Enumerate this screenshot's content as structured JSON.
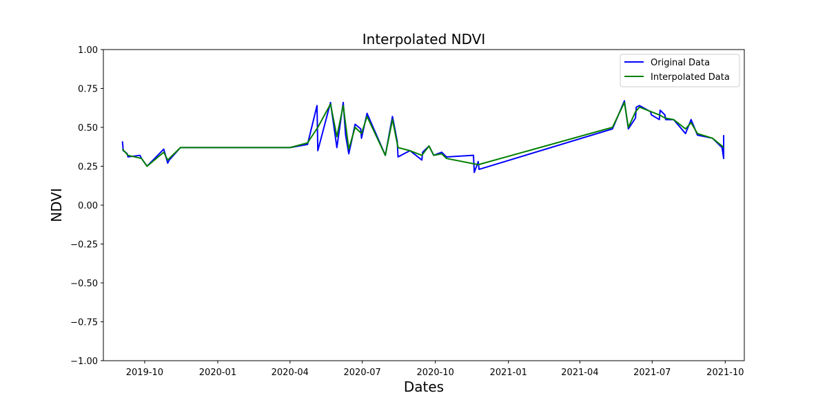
{
  "chart_data": {
    "type": "line",
    "title": "Interpolated NDVI",
    "xlabel": "Dates",
    "ylabel": "NDVI",
    "xlim": [
      "2019-08-10",
      "2021-10-25"
    ],
    "ylim": [
      -1.0,
      1.0
    ],
    "x_ticks": [
      "2019-10-01",
      "2020-01-01",
      "2020-04-01",
      "2020-07-01",
      "2020-10-01",
      "2021-01-01",
      "2021-04-01",
      "2021-07-01",
      "2021-10-01"
    ],
    "x_tick_labels": [
      "2019-10",
      "2020-01",
      "2020-04",
      "2020-07",
      "2020-10",
      "2021-01",
      "2021-04",
      "2021-07",
      "2021-10"
    ],
    "y_ticks": [
      1.0,
      0.75,
      0.5,
      0.25,
      0.0,
      -0.25,
      -0.5,
      -0.75,
      -1.0
    ],
    "y_tick_labels": [
      "1.00",
      "0.75",
      "0.50",
      "0.25",
      "0.00",
      "−0.25",
      "−0.50",
      "−0.75",
      "−1.00"
    ],
    "grid": false,
    "legend": {
      "position": "top-right",
      "entries": [
        "Original Data",
        "Interpolated Data"
      ]
    },
    "series": [
      {
        "name": "Original Data",
        "color": "#0000ff",
        "points": [
          [
            "2019-09-03",
            0.41
          ],
          [
            "2019-09-04",
            0.35
          ],
          [
            "2019-09-07",
            0.34
          ],
          [
            "2019-09-09",
            0.33
          ],
          [
            "2019-09-10",
            0.31
          ],
          [
            "2019-09-25",
            0.32
          ],
          [
            "2019-09-27",
            0.3
          ],
          [
            "2019-10-04",
            0.25
          ],
          [
            "2019-10-25",
            0.36
          ],
          [
            "2019-10-30",
            0.27
          ],
          [
            "2019-11-01",
            0.29
          ],
          [
            "2019-11-15",
            0.37
          ],
          [
            "2020-04-01",
            0.37
          ],
          [
            "2020-04-23",
            0.39
          ],
          [
            "2020-05-05",
            0.64
          ],
          [
            "2020-05-06",
            0.35
          ],
          [
            "2020-05-22",
            0.66
          ],
          [
            "2020-05-30",
            0.37
          ],
          [
            "2020-06-07",
            0.66
          ],
          [
            "2020-06-10",
            0.45
          ],
          [
            "2020-06-14",
            0.33
          ],
          [
            "2020-06-17",
            0.4
          ],
          [
            "2020-06-22",
            0.52
          ],
          [
            "2020-06-29",
            0.49
          ],
          [
            "2020-06-30",
            0.43
          ],
          [
            "2020-07-07",
            0.59
          ],
          [
            "2020-07-30",
            0.32
          ],
          [
            "2020-08-08",
            0.57
          ],
          [
            "2020-08-14",
            0.41
          ],
          [
            "2020-08-15",
            0.31
          ],
          [
            "2020-08-30",
            0.35
          ],
          [
            "2020-09-14",
            0.29
          ],
          [
            "2020-09-15",
            0.34
          ],
          [
            "2020-09-23",
            0.38
          ],
          [
            "2020-09-29",
            0.32
          ],
          [
            "2020-10-09",
            0.34
          ],
          [
            "2020-10-15",
            0.31
          ],
          [
            "2020-11-18",
            0.32
          ],
          [
            "2020-11-19",
            0.21
          ],
          [
            "2020-11-24",
            0.28
          ],
          [
            "2020-11-25",
            0.23
          ],
          [
            "2021-05-12",
            0.49
          ],
          [
            "2021-05-27",
            0.67
          ],
          [
            "2021-06-01",
            0.49
          ],
          [
            "2021-06-10",
            0.56
          ],
          [
            "2021-06-11",
            0.63
          ],
          [
            "2021-06-15",
            0.64
          ],
          [
            "2021-06-29",
            0.6
          ],
          [
            "2021-06-30",
            0.58
          ],
          [
            "2021-07-10",
            0.55
          ],
          [
            "2021-07-11",
            0.61
          ],
          [
            "2021-07-17",
            0.58
          ],
          [
            "2021-07-18",
            0.55
          ],
          [
            "2021-07-28",
            0.55
          ],
          [
            "2021-08-12",
            0.46
          ],
          [
            "2021-08-19",
            0.55
          ],
          [
            "2021-08-27",
            0.45
          ],
          [
            "2021-09-15",
            0.43
          ],
          [
            "2021-09-27",
            0.37
          ],
          [
            "2021-09-29",
            0.3
          ],
          [
            "2021-09-29",
            0.45
          ]
        ]
      },
      {
        "name": "Interpolated Data",
        "color": "#007f00",
        "points": [
          [
            "2019-09-03",
            0.36
          ],
          [
            "2019-09-10",
            0.32
          ],
          [
            "2019-09-27",
            0.3
          ],
          [
            "2019-10-04",
            0.25
          ],
          [
            "2019-10-25",
            0.34
          ],
          [
            "2019-10-30",
            0.29
          ],
          [
            "2019-11-15",
            0.37
          ],
          [
            "2020-04-01",
            0.37
          ],
          [
            "2020-04-23",
            0.4
          ],
          [
            "2020-05-06",
            0.5
          ],
          [
            "2020-05-22",
            0.65
          ],
          [
            "2020-05-30",
            0.44
          ],
          [
            "2020-06-07",
            0.64
          ],
          [
            "2020-06-14",
            0.36
          ],
          [
            "2020-06-22",
            0.5
          ],
          [
            "2020-06-30",
            0.46
          ],
          [
            "2020-07-07",
            0.57
          ],
          [
            "2020-07-30",
            0.32
          ],
          [
            "2020-08-08",
            0.55
          ],
          [
            "2020-08-15",
            0.37
          ],
          [
            "2020-08-30",
            0.35
          ],
          [
            "2020-09-14",
            0.32
          ],
          [
            "2020-09-23",
            0.38
          ],
          [
            "2020-09-29",
            0.32
          ],
          [
            "2020-10-09",
            0.33
          ],
          [
            "2020-10-15",
            0.3
          ],
          [
            "2020-11-24",
            0.26
          ],
          [
            "2021-05-12",
            0.5
          ],
          [
            "2021-05-27",
            0.66
          ],
          [
            "2021-06-01",
            0.5
          ],
          [
            "2021-06-10",
            0.6
          ],
          [
            "2021-06-15",
            0.63
          ],
          [
            "2021-06-30",
            0.6
          ],
          [
            "2021-07-10",
            0.58
          ],
          [
            "2021-07-17",
            0.56
          ],
          [
            "2021-07-28",
            0.55
          ],
          [
            "2021-08-12",
            0.49
          ],
          [
            "2021-08-19",
            0.53
          ],
          [
            "2021-08-27",
            0.46
          ],
          [
            "2021-09-15",
            0.43
          ],
          [
            "2021-09-27",
            0.38
          ],
          [
            "2021-09-29",
            0.37
          ]
        ]
      }
    ]
  }
}
